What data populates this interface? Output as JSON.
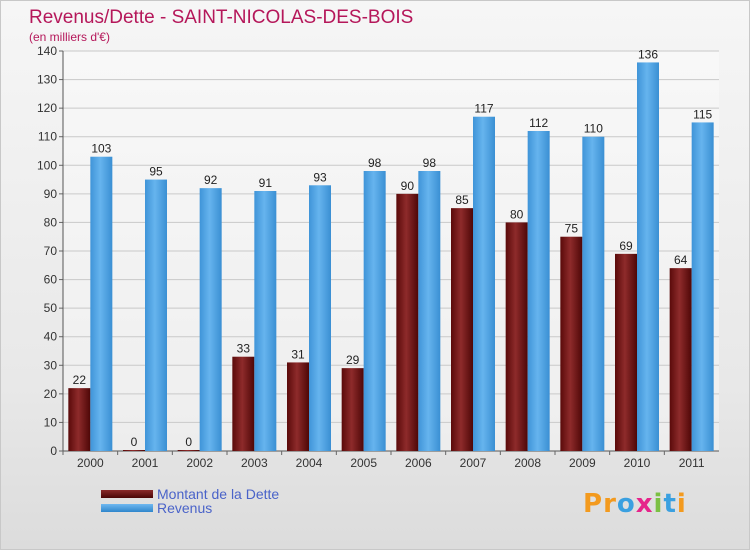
{
  "chart_data": {
    "type": "bar",
    "title": "Revenus/Dette - SAINT-NICOLAS-DES-BOIS",
    "subtitle": "(en milliers d'€)",
    "categories": [
      "2000",
      "2001",
      "2002",
      "2003",
      "2004",
      "2005",
      "2006",
      "2007",
      "2008",
      "2009",
      "2010",
      "2011"
    ],
    "series": [
      {
        "name": "Montant de la Dette",
        "values": [
          22,
          0,
          0,
          33,
          31,
          29,
          90,
          85,
          80,
          75,
          69,
          64
        ],
        "color": "#6e1212"
      },
      {
        "name": "Revenus",
        "values": [
          103,
          95,
          92,
          91,
          93,
          98,
          98,
          117,
          112,
          110,
          136,
          115
        ],
        "color": "#4fa3e3"
      }
    ],
    "ylim": [
      0,
      140
    ],
    "yticks": [
      0,
      10,
      20,
      30,
      40,
      50,
      60,
      70,
      80,
      90,
      100,
      110,
      120,
      130,
      140
    ],
    "grid": true,
    "legend_position": "bottom-left"
  },
  "legend": {
    "items": [
      {
        "label": "Montant de la Dette",
        "color": "#6e1212"
      },
      {
        "label": "Revenus",
        "color": "#4fa3e3"
      }
    ]
  },
  "logo": {
    "text": "Proxiti",
    "letters": [
      {
        "char": "P",
        "color": "#f39a1e"
      },
      {
        "char": "r",
        "color": "#f39a1e"
      },
      {
        "char": "o",
        "color": "#3aa0e0"
      },
      {
        "char": "x",
        "color": "#e6248b"
      },
      {
        "char": "i",
        "color": "#7bc043"
      },
      {
        "char": "t",
        "color": "#3aa0e0"
      },
      {
        "char": "i",
        "color": "#f39a1e"
      }
    ]
  }
}
